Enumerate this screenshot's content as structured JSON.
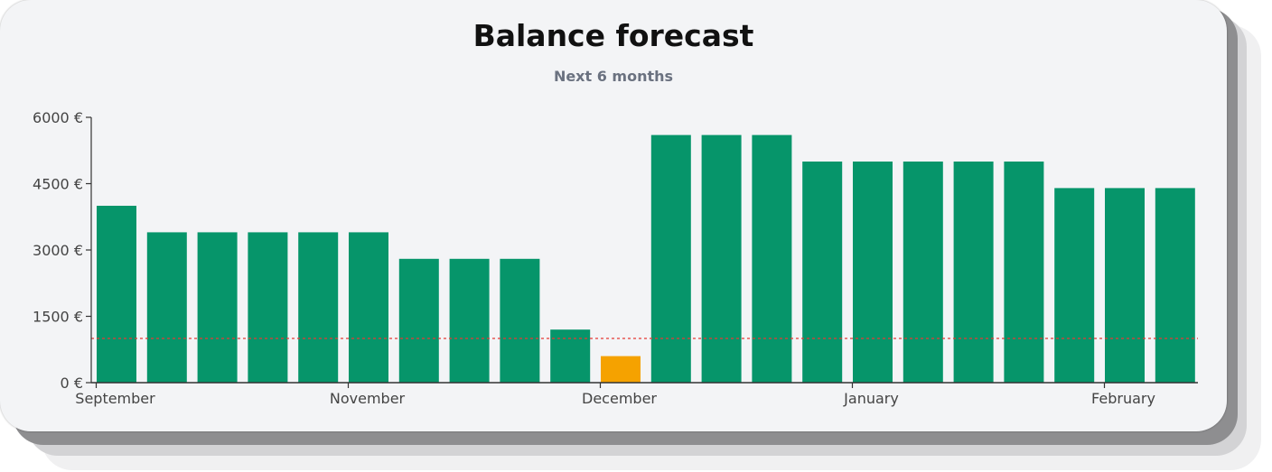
{
  "chart_data": {
    "type": "bar",
    "title": "Balance forecast",
    "subtitle": "Next 6 months",
    "xlabel": "",
    "ylabel": "",
    "ylim": [
      0,
      6000
    ],
    "y_ticks": [
      "0 €",
      "1500 €",
      "3000 €",
      "4500 €",
      "6000 €"
    ],
    "y_tick_values": [
      0,
      1500,
      3000,
      4500,
      6000
    ],
    "x_tick_labels": [
      {
        "label": "September",
        "bar_index": 0
      },
      {
        "label": "November",
        "bar_index": 5
      },
      {
        "label": "December",
        "bar_index": 10
      },
      {
        "label": "January",
        "bar_index": 15
      },
      {
        "label": "February",
        "bar_index": 20
      }
    ],
    "values": [
      4000,
      3400,
      3400,
      3400,
      3400,
      3400,
      2800,
      2800,
      2800,
      1200,
      600,
      5600,
      5600,
      5600,
      5000,
      5000,
      5000,
      5000,
      5000,
      4400,
      4400,
      4400
    ],
    "threshold": 1000,
    "grid": false,
    "colors": {
      "bar": "#06956a",
      "bar_below_threshold": "#f5a200",
      "threshold_line": "#e53935",
      "axis": "#333333"
    }
  }
}
